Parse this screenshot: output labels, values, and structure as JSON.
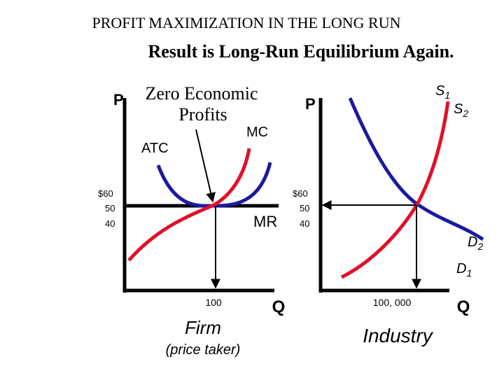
{
  "header": {
    "title": "PROFIT MAXIMIZATION IN THE LONG RUN",
    "subtitle": "Result is Long-Run Equilibrium Again."
  },
  "firm": {
    "axis_y": "P",
    "note_line1": "Zero Economic",
    "note_line2": "Profits",
    "mc": "MC",
    "atc": "ATC",
    "mr": "MR",
    "prices": [
      "$60",
      "50",
      "40"
    ],
    "quantity": "100",
    "axis_x": "Q",
    "name": "Firm",
    "caption": "(price taker)"
  },
  "industry": {
    "axis_y": "P",
    "prices": [
      "$60",
      "50",
      "40"
    ],
    "quantity": "100, 000",
    "axis_x": "Q",
    "name": "Industry",
    "s1": {
      "letter": "S",
      "sub": "1"
    },
    "s2": {
      "letter": "S",
      "sub": "2"
    },
    "d2": {
      "letter": "D",
      "sub": "2"
    },
    "d1": {
      "letter": "D",
      "sub": "1"
    }
  }
}
